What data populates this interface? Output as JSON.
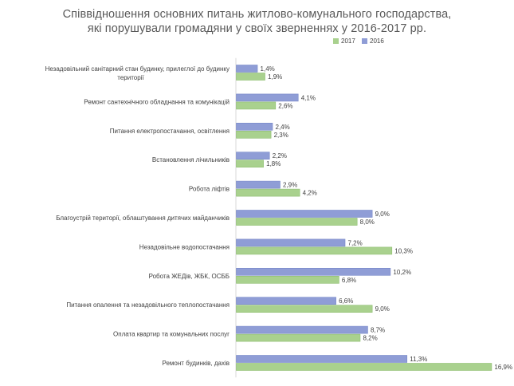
{
  "chart_data": {
    "type": "bar",
    "orientation": "horizontal",
    "title": "Співвідношення основних питань житлово-комунального господарства,",
    "subtitle": "які порушували громадяни у своїх зверненнях у 2016-2017 рр.",
    "legend_position": "top-right",
    "grid": false,
    "xlim": [
      0,
      17
    ],
    "categories": [
      "Незадовільний санітарний стан будинку, прилеглої до будинку|території",
      "Ремонт сантехнічного обладнання та комунікацій",
      "Питання електропостачання, освітлення",
      "Встановлення лічильників",
      "Робота ліфтів",
      "Благоустрій території, облаштування дитячих майданчиків",
      "Незадовільне водопостачання",
      "Робота ЖЕДів, ЖБК, ОСББ",
      "Питання опалення та незадовільного теплопостачання",
      "Оплата квартир та комунальних послуг",
      "Ремонт будинків, дахів"
    ],
    "series": [
      {
        "name": "2016",
        "color": "#8f9dd6",
        "values": [
          1.4,
          4.1,
          2.4,
          2.2,
          2.9,
          9.0,
          7.2,
          10.2,
          6.6,
          8.7,
          11.3
        ],
        "labels": [
          "1,4%",
          "4,1%",
          "2,4%",
          "2,2%",
          "2,9%",
          "9,0%",
          "7,2%",
          "10,2%",
          "6,6%",
          "8,7%",
          "11,3%"
        ]
      },
      {
        "name": "2017",
        "color": "#a9d18e",
        "values": [
          1.9,
          2.6,
          2.3,
          1.8,
          4.2,
          8.0,
          10.3,
          6.8,
          9.0,
          8.2,
          16.9
        ],
        "labels": [
          "1,9%",
          "2,6%",
          "2,3%",
          "1,8%",
          "4,2%",
          "8,0%",
          "10,3%",
          "6,8%",
          "9,0%",
          "8,2%",
          "16,9%"
        ]
      }
    ],
    "legend_order": [
      "2017",
      "2016"
    ]
  }
}
